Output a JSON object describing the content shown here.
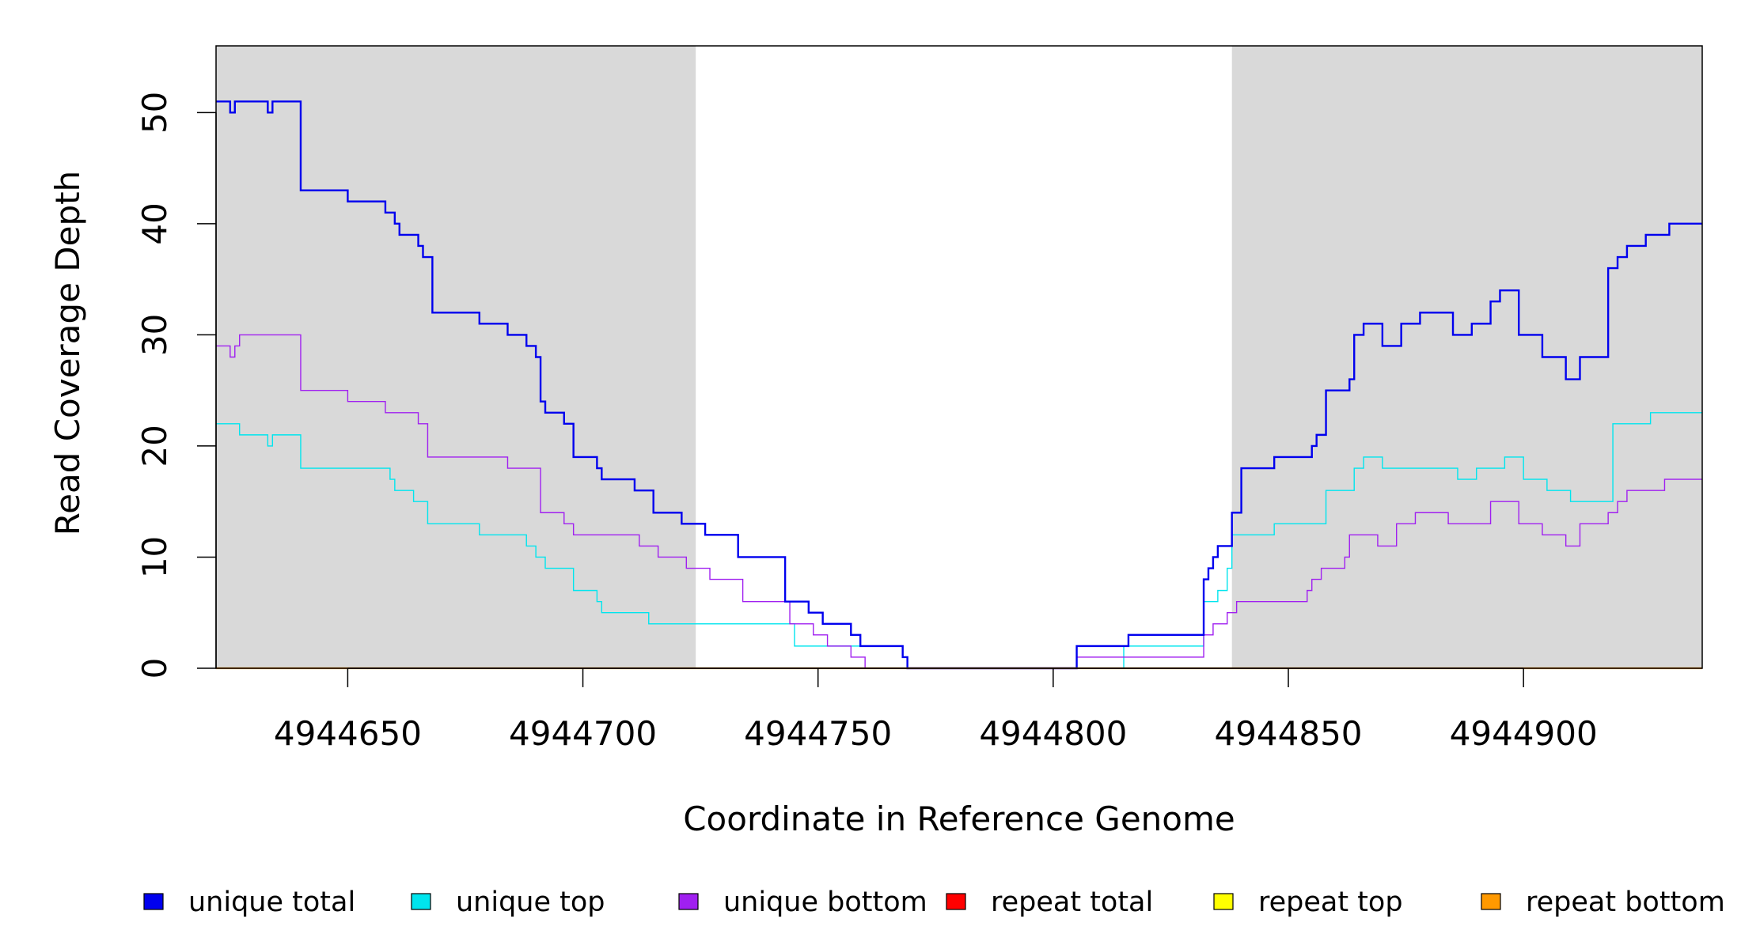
{
  "chart_data": {
    "type": "line",
    "xlabel": "Coordinate in Reference Genome",
    "ylabel": "Read Coverage Depth",
    "xlim": [
      4944622,
      4944938
    ],
    "ylim": [
      0,
      56
    ],
    "xticks": [
      {
        "value": 4944650,
        "label": "4944650"
      },
      {
        "value": 4944700,
        "label": "4944700"
      },
      {
        "value": 4944750,
        "label": "4944750"
      },
      {
        "value": 4944800,
        "label": "4944800"
      },
      {
        "value": 4944850,
        "label": "4944850"
      },
      {
        "value": 4944900,
        "label": "4944900"
      }
    ],
    "yticks": [
      {
        "value": 0,
        "label": "0"
      },
      {
        "value": 10,
        "label": "10"
      },
      {
        "value": 20,
        "label": "20"
      },
      {
        "value": 30,
        "label": "30"
      },
      {
        "value": 40,
        "label": "40"
      },
      {
        "value": 50,
        "label": "50"
      }
    ],
    "shaded_regions": [
      {
        "x0": 4944622,
        "x1": 4944724,
        "color": "#d9d9d9"
      },
      {
        "x0": 4944838,
        "x1": 4944938,
        "color": "#d9d9d9"
      }
    ],
    "grid": false,
    "legend_position": "bottom",
    "series": [
      {
        "name": "unique total",
        "color": "#0000ee",
        "stroke_width": 2.4,
        "points": [
          [
            4944622,
            51
          ],
          [
            4944625,
            50
          ],
          [
            4944626,
            51
          ],
          [
            4944633,
            50
          ],
          [
            4944634,
            51
          ],
          [
            4944640,
            43
          ],
          [
            4944650,
            42
          ],
          [
            4944658,
            41
          ],
          [
            4944660,
            40
          ],
          [
            4944661,
            39
          ],
          [
            4944665,
            38
          ],
          [
            4944666,
            37
          ],
          [
            4944668,
            32
          ],
          [
            4944678,
            31
          ],
          [
            4944684,
            30
          ],
          [
            4944688,
            29
          ],
          [
            4944690,
            28
          ],
          [
            4944691,
            24
          ],
          [
            4944692,
            23
          ],
          [
            4944696,
            22
          ],
          [
            4944698,
            19
          ],
          [
            4944703,
            18
          ],
          [
            4944704,
            17
          ],
          [
            4944711,
            16
          ],
          [
            4944715,
            14
          ],
          [
            4944721,
            13
          ],
          [
            4944726,
            12
          ],
          [
            4944733,
            10
          ],
          [
            4944743,
            6
          ],
          [
            4944748,
            5
          ],
          [
            4944751,
            4
          ],
          [
            4944757,
            3
          ],
          [
            4944759,
            2
          ],
          [
            4944768,
            1
          ],
          [
            4944769,
            0
          ],
          [
            4944805,
            2
          ],
          [
            4944816,
            3
          ],
          [
            4944832,
            8
          ],
          [
            4944833,
            9
          ],
          [
            4944834,
            10
          ],
          [
            4944835,
            11
          ],
          [
            4944838,
            14
          ],
          [
            4944840,
            18
          ],
          [
            4944847,
            19
          ],
          [
            4944855,
            20
          ],
          [
            4944856,
            21
          ],
          [
            4944858,
            25
          ],
          [
            4944863,
            26
          ],
          [
            4944864,
            30
          ],
          [
            4944866,
            31
          ],
          [
            4944870,
            29
          ],
          [
            4944874,
            31
          ],
          [
            4944878,
            32
          ],
          [
            4944885,
            30
          ],
          [
            4944889,
            31
          ],
          [
            4944893,
            33
          ],
          [
            4944895,
            34
          ],
          [
            4944899,
            30
          ],
          [
            4944904,
            28
          ],
          [
            4944909,
            26
          ],
          [
            4944912,
            28
          ],
          [
            4944918,
            36
          ],
          [
            4944920,
            37
          ],
          [
            4944922,
            38
          ],
          [
            4944926,
            39
          ],
          [
            4944931,
            40
          ],
          [
            4944938,
            40
          ]
        ]
      },
      {
        "name": "unique top",
        "color": "#00e5ee",
        "stroke_width": 1.4,
        "points": [
          [
            4944622,
            22
          ],
          [
            4944627,
            21
          ],
          [
            4944633,
            20
          ],
          [
            4944634,
            21
          ],
          [
            4944640,
            18
          ],
          [
            4944659,
            17
          ],
          [
            4944660,
            16
          ],
          [
            4944664,
            15
          ],
          [
            4944667,
            13
          ],
          [
            4944678,
            12
          ],
          [
            4944688,
            11
          ],
          [
            4944690,
            10
          ],
          [
            4944692,
            9
          ],
          [
            4944698,
            7
          ],
          [
            4944703,
            6
          ],
          [
            4944704,
            5
          ],
          [
            4944714,
            4
          ],
          [
            4944745,
            2
          ],
          [
            4944753,
            2
          ],
          [
            4944768,
            1
          ],
          [
            4944769,
            0
          ],
          [
            4944815,
            2
          ],
          [
            4944832,
            6
          ],
          [
            4944835,
            7
          ],
          [
            4944837,
            9
          ],
          [
            4944838,
            12
          ],
          [
            4944847,
            13
          ],
          [
            4944858,
            16
          ],
          [
            4944864,
            18
          ],
          [
            4944866,
            19
          ],
          [
            4944870,
            18
          ],
          [
            4944886,
            17
          ],
          [
            4944890,
            18
          ],
          [
            4944896,
            19
          ],
          [
            4944900,
            17
          ],
          [
            4944905,
            16
          ],
          [
            4944910,
            15
          ],
          [
            4944919,
            22
          ],
          [
            4944927,
            23
          ],
          [
            4944938,
            23
          ]
        ]
      },
      {
        "name": "unique bottom",
        "color": "#a020f0",
        "stroke_width": 1.4,
        "points": [
          [
            4944622,
            29
          ],
          [
            4944625,
            28
          ],
          [
            4944626,
            29
          ],
          [
            4944627,
            30
          ],
          [
            4944640,
            25
          ],
          [
            4944650,
            24
          ],
          [
            4944658,
            23
          ],
          [
            4944665,
            22
          ],
          [
            4944667,
            19
          ],
          [
            4944684,
            18
          ],
          [
            4944691,
            14
          ],
          [
            4944696,
            13
          ],
          [
            4944698,
            12
          ],
          [
            4944712,
            11
          ],
          [
            4944716,
            10
          ],
          [
            4944722,
            9
          ],
          [
            4944727,
            8
          ],
          [
            4944734,
            6
          ],
          [
            4944744,
            4
          ],
          [
            4944746,
            4
          ],
          [
            4944749,
            3
          ],
          [
            4944752,
            2
          ],
          [
            4944757,
            1
          ],
          [
            4944760,
            0
          ],
          [
            4944805,
            1
          ],
          [
            4944832,
            3
          ],
          [
            4944834,
            4
          ],
          [
            4944837,
            5
          ],
          [
            4944839,
            6
          ],
          [
            4944854,
            7
          ],
          [
            4944855,
            8
          ],
          [
            4944857,
            9
          ],
          [
            4944862,
            10
          ],
          [
            4944863,
            12
          ],
          [
            4944869,
            11
          ],
          [
            4944873,
            13
          ],
          [
            4944877,
            14
          ],
          [
            4944884,
            13
          ],
          [
            4944893,
            15
          ],
          [
            4944899,
            13
          ],
          [
            4944904,
            12
          ],
          [
            4944909,
            11
          ],
          [
            4944912,
            13
          ],
          [
            4944918,
            14
          ],
          [
            4944920,
            15
          ],
          [
            4944922,
            16
          ],
          [
            4944930,
            17
          ],
          [
            4944938,
            17
          ]
        ]
      },
      {
        "name": "repeat total",
        "color": "#ff0000",
        "stroke_width": 1.4,
        "points": [
          [
            4944622,
            0
          ],
          [
            4944938,
            0
          ]
        ]
      },
      {
        "name": "repeat top",
        "color": "#ffff00",
        "stroke_width": 1.4,
        "points": [
          [
            4944622,
            0
          ],
          [
            4944938,
            0
          ]
        ]
      },
      {
        "name": "repeat bottom",
        "color": "#ff9900",
        "stroke_width": 2.2,
        "points": [
          [
            4944622,
            0
          ],
          [
            4944938,
            0
          ]
        ]
      }
    ]
  }
}
